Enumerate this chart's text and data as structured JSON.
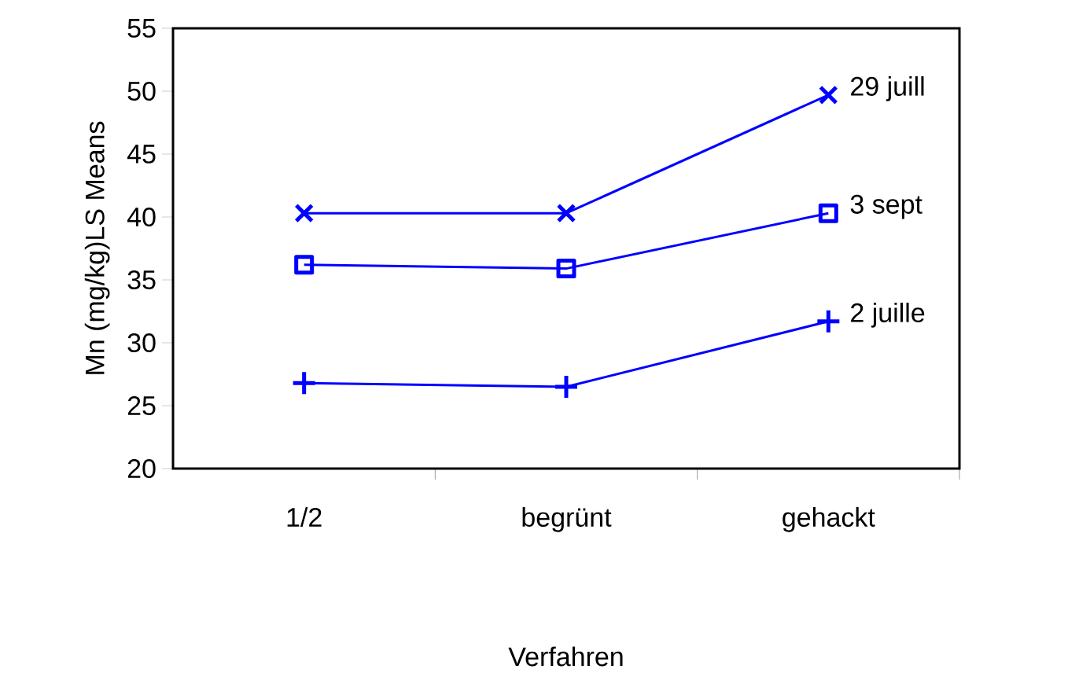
{
  "chart_data": {
    "type": "line",
    "xlabel": "Verfahren",
    "ylabel": "Mn (mg/kg)LS Means",
    "categories": [
      "1/2",
      "begrünt",
      "gehackt"
    ],
    "ylim": [
      20,
      55
    ],
    "yticks": [
      20,
      25,
      30,
      35,
      40,
      45,
      50,
      55
    ],
    "legend": false,
    "grid": false,
    "line_style": "solid",
    "series": [
      {
        "name": "29 juill",
        "color": "#0000ff",
        "marker": "cross",
        "values": [
          40.3,
          40.3,
          49.7
        ]
      },
      {
        "name": "3 sept",
        "color": "#0000ff",
        "marker": "square",
        "values": [
          36.2,
          35.9,
          40.3
        ]
      },
      {
        "name": "2 juille",
        "color": "#0000ff",
        "marker": "plus",
        "values": [
          26.8,
          26.5,
          31.7
        ]
      }
    ]
  }
}
